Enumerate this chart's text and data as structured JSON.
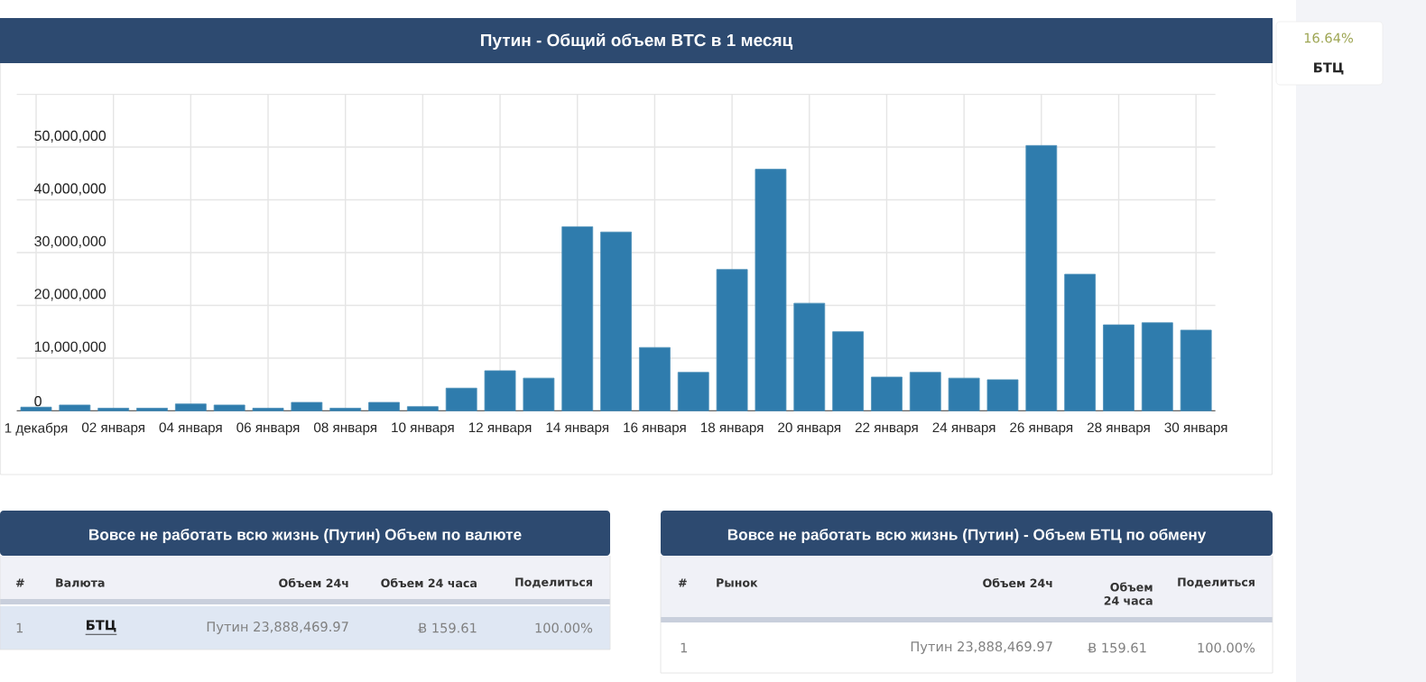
{
  "chart_data": [
    {
      "type": "bar",
      "title": "Путин - Общий объем BTC в 1 месяц",
      "categories": [
        "1 декабря",
        null,
        "02 января",
        null,
        "04 января",
        null,
        "06 января",
        null,
        "08 января",
        null,
        "10 января",
        null,
        "12 января",
        null,
        "14 января",
        null,
        "16 января",
        null,
        "18 января",
        null,
        "20 января",
        null,
        "22 января",
        null,
        "24 января",
        null,
        "26 января",
        null,
        "28 января",
        null,
        "30 января"
      ],
      "values": [
        700000,
        1100000,
        500000,
        500000,
        1300000,
        1100000,
        500000,
        1600000,
        500000,
        1600000,
        800000,
        4300000,
        7600000,
        6200000,
        34900000,
        33900000,
        12000000,
        7300000,
        26800000,
        45800000,
        20400000,
        15000000,
        6400000,
        7300000,
        6200000,
        5900000,
        50300000,
        25900000,
        16300000,
        16700000,
        15300000
      ],
      "color": "#2f7cad",
      "ylim": [
        0,
        60000000
      ],
      "yticks": [
        0,
        {
          "value": 10000000,
          "label": "10,000,000"
        },
        {
          "value": 20000000,
          "label": "20,000,000"
        },
        {
          "value": 30000000,
          "label": "30,000,000"
        },
        {
          "value": 40000000,
          "label": "40,000,000"
        },
        {
          "value": 50000000,
          "label": "50,000,000"
        },
        {
          "value": 60000000,
          "label": null
        }
      ],
      "grid": true
    },
    {
      "type": "other",
      "title": "Вовсе не работать всю жизнь (Путин) Объем по валюте",
      "annotations": [
        "#",
        "Валюта",
        "Объем 24ч",
        "Объем 24 часа",
        "Поделиться",
        "1",
        "БТЦ",
        "Путин 23,888,469.97",
        "Ƀ 159.61",
        "100.00%"
      ]
    },
    {
      "type": "other",
      "title": "Вовсе не работать всю жизнь (Путин) - Объем БТЦ по обмену",
      "annotations": [
        "#",
        "Рынок",
        "Объем 24ч",
        "Объем 24 часа",
        "Поделиться",
        "1",
        "Путин 23,888,469.97",
        "Ƀ 159.61",
        "100.00%"
      ]
    },
    {
      "type": "other",
      "annotations": [
        "16.64%",
        "БТЦ"
      ]
    }
  ]
}
